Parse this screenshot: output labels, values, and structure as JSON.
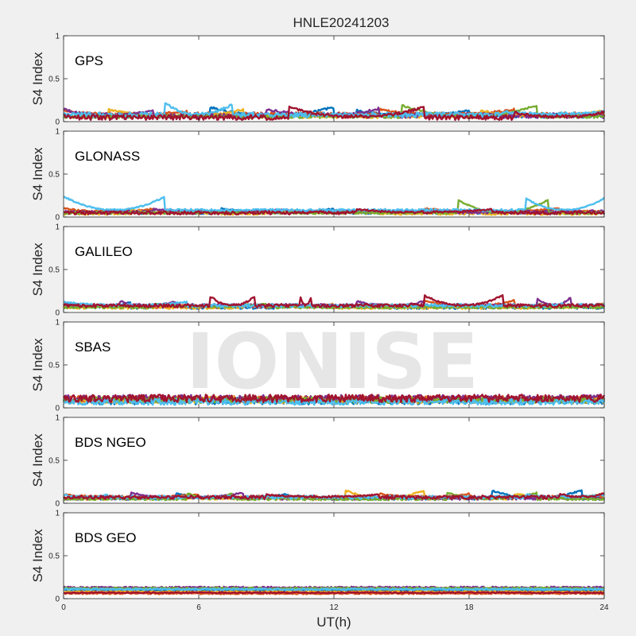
{
  "figure": {
    "title": "HNLE20241203",
    "watermark": "IONISE",
    "xlabel": "UT(h)",
    "background": "#f0f0f0"
  },
  "colors": [
    "#0072BD",
    "#D95319",
    "#EDB120",
    "#7E2F8E",
    "#77AC30",
    "#4DBEEE",
    "#A2142F"
  ],
  "chart_data": [
    {
      "type": "scatter",
      "constellation": "GPS",
      "ylabel": "S4 Index",
      "xlim": [
        0,
        24
      ],
      "ylim": [
        0,
        1
      ],
      "xticks": [
        0,
        6,
        12,
        18,
        24
      ],
      "yticks": [
        0,
        0.5,
        1
      ],
      "series": [
        {
          "color_index": 0,
          "base": 0.07,
          "noise": 0.025,
          "arcs": [
            [
              6.5,
              12.0,
              0.17
            ],
            [
              13.0,
              18.0,
              0.13
            ]
          ]
        },
        {
          "color_index": 1,
          "base": 0.08,
          "noise": 0.03,
          "arcs": [
            [
              0,
              5.5,
              0.12
            ],
            [
              14.0,
              20.0,
              0.14
            ]
          ]
        },
        {
          "color_index": 2,
          "base": 0.06,
          "noise": 0.02,
          "arcs": [
            [
              2.0,
              8.0,
              0.14
            ],
            [
              18.5,
              24,
              0.13
            ]
          ]
        },
        {
          "color_index": 3,
          "base": 0.07,
          "noise": 0.03,
          "arcs": [
            [
              0,
              4.0,
              0.14
            ],
            [
              9.0,
              14.0,
              0.15
            ]
          ]
        },
        {
          "color_index": 4,
          "base": 0.06,
          "noise": 0.02,
          "arcs": [
            [
              15.0,
              21.0,
              0.19
            ]
          ]
        },
        {
          "color_index": 5,
          "base": 0.08,
          "noise": 0.03,
          "arcs": [
            [
              4.5,
              7.5,
              0.21
            ],
            [
              19.5,
              24,
              0.12
            ]
          ]
        },
        {
          "color_index": 6,
          "base": 0.05,
          "noise": 0.03,
          "arcs": [
            [
              10.0,
              16.0,
              0.17
            ],
            [
              20.0,
              24,
              0.11
            ]
          ]
        }
      ]
    },
    {
      "type": "scatter",
      "constellation": "GLONASS",
      "ylabel": "S4 Index",
      "xlim": [
        0,
        24
      ],
      "ylim": [
        0,
        1
      ],
      "xticks": [
        0,
        6,
        12,
        18,
        24
      ],
      "yticks": [
        0,
        0.5,
        1
      ],
      "series": [
        {
          "color_index": 0,
          "base": 0.05,
          "noise": 0.015,
          "arcs": [
            [
              7.0,
              12.0,
              0.1
            ]
          ]
        },
        {
          "color_index": 1,
          "base": 0.06,
          "noise": 0.02,
          "arcs": [
            [
              0,
              4.0,
              0.1
            ],
            [
              16.0,
              22.0,
              0.1
            ]
          ]
        },
        {
          "color_index": 2,
          "base": 0.04,
          "noise": 0.015,
          "arcs": [
            [
              9.0,
              14.0,
              0.08
            ],
            [
              3.0,
              6.0,
              0.09
            ]
          ]
        },
        {
          "color_index": 3,
          "base": 0.06,
          "noise": 0.02,
          "arcs": [
            [
              4.0,
              10.0,
              0.09
            ],
            [
              12.0,
              17.0,
              0.08
            ]
          ]
        },
        {
          "color_index": 4,
          "base": 0.05,
          "noise": 0.015,
          "arcs": [
            [
              17.5,
              21.5,
              0.2
            ]
          ]
        },
        {
          "color_index": 5,
          "base": 0.08,
          "noise": 0.015,
          "arcs": [
            [
              0,
              4.5,
              0.24
            ],
            [
              20.5,
              24,
              0.22
            ]
          ]
        },
        {
          "color_index": 6,
          "base": 0.05,
          "noise": 0.02,
          "arcs": [
            [
              13.0,
              19.0,
              0.09
            ]
          ]
        }
      ]
    },
    {
      "type": "scatter",
      "constellation": "GALILEO",
      "ylabel": "S4 Index",
      "xlim": [
        0,
        24
      ],
      "ylim": [
        0,
        1
      ],
      "xticks": [
        0,
        6,
        12,
        18,
        24
      ],
      "yticks": [
        0,
        0.5,
        1
      ],
      "series": [
        {
          "color_index": 0,
          "base": 0.06,
          "noise": 0.02,
          "arcs": [
            [
              0,
              3.0,
              0.12
            ],
            [
              10.0,
              14.0,
              0.09
            ]
          ]
        },
        {
          "color_index": 1,
          "base": 0.07,
          "noise": 0.02,
          "arcs": [
            [
              16.0,
              20.0,
              0.14
            ]
          ]
        },
        {
          "color_index": 2,
          "base": 0.06,
          "noise": 0.02,
          "arcs": [
            [
              8.0,
              12.0,
              0.1
            ],
            [
              21.0,
              24,
              0.11
            ]
          ]
        },
        {
          "color_index": 3,
          "base": 0.08,
          "noise": 0.02,
          "arcs": [
            [
              2.5,
              5.0,
              0.13
            ],
            [
              13.0,
              16.0,
              0.13
            ],
            [
              21.0,
              22.5,
              0.17
            ]
          ]
        },
        {
          "color_index": 4,
          "base": 0.06,
          "noise": 0.015,
          "arcs": [
            [
              4.0,
              9.0,
              0.1
            ]
          ]
        },
        {
          "color_index": 5,
          "base": 0.08,
          "noise": 0.02,
          "arcs": [
            [
              0,
              5.5,
              0.12
            ],
            [
              22.0,
              24,
              0.1
            ]
          ]
        },
        {
          "color_index": 6,
          "base": 0.08,
          "noise": 0.02,
          "arcs": [
            [
              6.5,
              8.5,
              0.19
            ],
            [
              10.5,
              11.0,
              0.2
            ],
            [
              16.0,
              19.5,
              0.2
            ]
          ]
        }
      ]
    },
    {
      "type": "scatter",
      "constellation": "SBAS",
      "ylabel": "S4 Index",
      "xlim": [
        0,
        24
      ],
      "ylim": [
        0,
        1
      ],
      "xticks": [
        0,
        6,
        12,
        18,
        24
      ],
      "yticks": [
        0,
        0.5,
        1
      ],
      "series": [
        {
          "color_index": 0,
          "base": 0.08,
          "noise": 0.04,
          "arcs": []
        },
        {
          "color_index": 1,
          "base": 0.1,
          "noise": 0.04,
          "arcs": []
        },
        {
          "color_index": 2,
          "base": 0.09,
          "noise": 0.04,
          "arcs": []
        },
        {
          "color_index": 3,
          "base": 0.11,
          "noise": 0.04,
          "arcs": []
        },
        {
          "color_index": 4,
          "base": 0.09,
          "noise": 0.035,
          "arcs": []
        },
        {
          "color_index": 5,
          "base": 0.07,
          "noise": 0.035,
          "arcs": []
        },
        {
          "color_index": 6,
          "base": 0.11,
          "noise": 0.045,
          "arcs": []
        }
      ]
    },
    {
      "type": "scatter",
      "constellation": "BDS NGEO",
      "ylabel": "S4 Index",
      "xlim": [
        0,
        24
      ],
      "ylim": [
        0,
        1
      ],
      "xticks": [
        0,
        6,
        12,
        18,
        24
      ],
      "yticks": [
        0,
        0.5,
        1
      ],
      "series": [
        {
          "color_index": 0,
          "base": 0.06,
          "noise": 0.02,
          "arcs": [
            [
              5.0,
              10.0,
              0.11
            ],
            [
              19.0,
              23.0,
              0.15
            ]
          ]
        },
        {
          "color_index": 1,
          "base": 0.07,
          "noise": 0.02,
          "arcs": [
            [
              0,
              6.0,
              0.1
            ],
            [
              14.0,
              18.0,
              0.11
            ]
          ]
        },
        {
          "color_index": 2,
          "base": 0.06,
          "noise": 0.02,
          "arcs": [
            [
              12.5,
              16.0,
              0.15
            ],
            [
              20.0,
              24,
              0.11
            ]
          ]
        },
        {
          "color_index": 3,
          "base": 0.06,
          "noise": 0.02,
          "arcs": [
            [
              3.0,
              8.0,
              0.12
            ]
          ]
        },
        {
          "color_index": 4,
          "base": 0.05,
          "noise": 0.015,
          "arcs": [
            [
              5.5,
              7.5,
              0.12
            ],
            [
              17.0,
              21.0,
              0.12
            ]
          ]
        },
        {
          "color_index": 5,
          "base": 0.07,
          "noise": 0.02,
          "arcs": [
            [
              0,
              2.0,
              0.1
            ],
            [
              20.5,
              24,
              0.1
            ]
          ]
        },
        {
          "color_index": 6,
          "base": 0.07,
          "noise": 0.02,
          "arcs": [
            [
              9.0,
              14.0,
              0.1
            ],
            [
              22.0,
              24,
              0.12
            ]
          ]
        }
      ]
    },
    {
      "type": "scatter",
      "constellation": "BDS GEO",
      "ylabel": "S4 Index",
      "xlim": [
        0,
        24
      ],
      "ylim": [
        0,
        1
      ],
      "xticks": [
        0,
        6,
        12,
        18,
        24
      ],
      "yticks": [
        0,
        0.5,
        1
      ],
      "series": [
        {
          "color_index": 0,
          "base": 0.1,
          "noise": 0.008,
          "arcs": []
        },
        {
          "color_index": 1,
          "base": 0.06,
          "noise": 0.008,
          "arcs": []
        },
        {
          "color_index": 2,
          "base": 0.08,
          "noise": 0.008,
          "arcs": []
        },
        {
          "color_index": 3,
          "base": 0.13,
          "noise": 0.01,
          "arcs": []
        },
        {
          "color_index": 4,
          "base": 0.12,
          "noise": 0.01,
          "arcs": []
        },
        {
          "color_index": 5,
          "base": 0.11,
          "noise": 0.008,
          "arcs": []
        },
        {
          "color_index": 6,
          "base": 0.07,
          "noise": 0.008,
          "arcs": []
        }
      ]
    }
  ]
}
